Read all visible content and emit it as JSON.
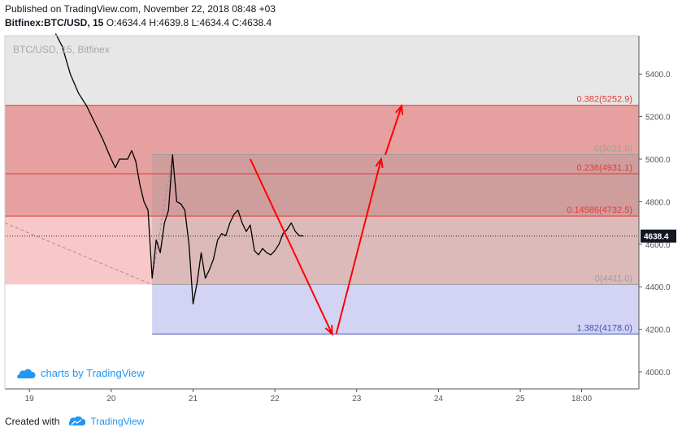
{
  "header": {
    "published": "Published on TradingView.com, November 22, 2018 08:48 +03",
    "symbol_line": "Bitfinex:BTC/USD, 15",
    "ohlc": "O:4634.4 H:4639.8 L:4634.4 C:4638.4"
  },
  "watermark": {
    "symbol": "BTC/USD, 15, Bitfinex",
    "brand": "charts by TradingView"
  },
  "footer": {
    "created_with": "Created with",
    "brand": "TradingView"
  },
  "colors": {
    "fib_red_line": "#e53935",
    "fib_gray_line": "#9e9e9e",
    "fib_blue_line": "#3f51b5",
    "fib_blue_fill": "#d3d3f3",
    "upper_gray_fill": "#e7e7e7",
    "fib_red_fill": "#e6a0a0",
    "arrow": "#ff0000",
    "price_tag": "#131722",
    "tv_blue": "#2196f3"
  },
  "chart_data": {
    "type": "line",
    "title": "BTC/USD, 15, Bitfinex",
    "xlabel": "",
    "ylabel": "",
    "ylim": [
      3920,
      5580
    ],
    "xlim": [
      18.7,
      26.45
    ],
    "x_ticks": [
      {
        "x": 19,
        "label": "19"
      },
      {
        "x": 20,
        "label": "20"
      },
      {
        "x": 21,
        "label": "21"
      },
      {
        "x": 22,
        "label": "22"
      },
      {
        "x": 23,
        "label": "23"
      },
      {
        "x": 24,
        "label": "24"
      },
      {
        "x": 25,
        "label": "25"
      },
      {
        "x": 25.75,
        "label": "18:00"
      }
    ],
    "y_ticks": [
      4000,
      4200,
      4400,
      4600,
      4800,
      5000,
      5200,
      5400
    ],
    "y_tick_labels": [
      "4000.0",
      "4200.0",
      "4400.0",
      "4600.0",
      "4800.0",
      "5000.0",
      "5200.0",
      "5400.0"
    ],
    "current_price": {
      "value": 4638.4,
      "label": "4638.4"
    },
    "fib_levels": [
      {
        "ratio": "0.382",
        "price": 5252.9,
        "label": "0.382(5252.9)",
        "color": "#e53935"
      },
      {
        "ratio": "0",
        "price": 5021.0,
        "label": "0(5021.0)",
        "color": "#9e9e9e"
      },
      {
        "ratio": "0.236",
        "price": 4931.1,
        "label": "0.236(4931.1)",
        "color": "#e53935"
      },
      {
        "ratio": "0.14586",
        "price": 4732.5,
        "label": "0.14586(4732.5)",
        "color": "#e53935"
      },
      {
        "ratio": "0",
        "price": 4411.0,
        "label": "0(4411.0)",
        "color": "#9e9e9e"
      },
      {
        "ratio": "1.382",
        "price": 4178.0,
        "label": "1.382(4178.0)",
        "color": "#3f51b5"
      }
    ],
    "price_series": {
      "name": "BTC/USD",
      "points": [
        [
          19.32,
          5590
        ],
        [
          19.4,
          5530
        ],
        [
          19.5,
          5400
        ],
        [
          19.6,
          5310
        ],
        [
          19.7,
          5250
        ],
        [
          19.8,
          5170
        ],
        [
          19.9,
          5090
        ],
        [
          20.0,
          5000
        ],
        [
          20.05,
          4960
        ],
        [
          20.1,
          5000
        ],
        [
          20.2,
          5000
        ],
        [
          20.25,
          5040
        ],
        [
          20.3,
          4990
        ],
        [
          20.35,
          4880
        ],
        [
          20.4,
          4800
        ],
        [
          20.45,
          4760
        ],
        [
          20.5,
          4440
        ],
        [
          20.55,
          4620
        ],
        [
          20.6,
          4560
        ],
        [
          20.65,
          4700
        ],
        [
          20.7,
          4760
        ],
        [
          20.75,
          5020
        ],
        [
          20.8,
          4800
        ],
        [
          20.85,
          4790
        ],
        [
          20.9,
          4760
        ],
        [
          20.95,
          4600
        ],
        [
          21.0,
          4320
        ],
        [
          21.05,
          4420
        ],
        [
          21.1,
          4560
        ],
        [
          21.15,
          4440
        ],
        [
          21.2,
          4480
        ],
        [
          21.25,
          4530
        ],
        [
          21.3,
          4620
        ],
        [
          21.35,
          4650
        ],
        [
          21.4,
          4640
        ],
        [
          21.45,
          4700
        ],
        [
          21.5,
          4740
        ],
        [
          21.55,
          4760
        ],
        [
          21.6,
          4700
        ],
        [
          21.65,
          4660
        ],
        [
          21.7,
          4690
        ],
        [
          21.75,
          4570
        ],
        [
          21.8,
          4550
        ],
        [
          21.85,
          4580
        ],
        [
          21.9,
          4560
        ],
        [
          21.95,
          4550
        ],
        [
          22.0,
          4570
        ],
        [
          22.05,
          4600
        ],
        [
          22.1,
          4650
        ],
        [
          22.15,
          4670
        ],
        [
          22.2,
          4700
        ],
        [
          22.25,
          4660
        ],
        [
          22.3,
          4640
        ],
        [
          22.35,
          4638.4
        ]
      ]
    },
    "drawings": {
      "dashed_line": [
        [
          18.7,
          4700
        ],
        [
          20.5,
          4410
        ]
      ],
      "dashed_diag": [
        [
          20.5,
          4440
        ],
        [
          20.75,
          5020
        ]
      ],
      "arrows": [
        [
          [
            21.7,
            5000
          ],
          [
            22.7,
            4178
          ]
        ],
        [
          [
            22.75,
            4178
          ],
          [
            23.3,
            5000
          ]
        ],
        [
          [
            23.35,
            5020
          ],
          [
            23.55,
            5250
          ]
        ]
      ]
    }
  }
}
